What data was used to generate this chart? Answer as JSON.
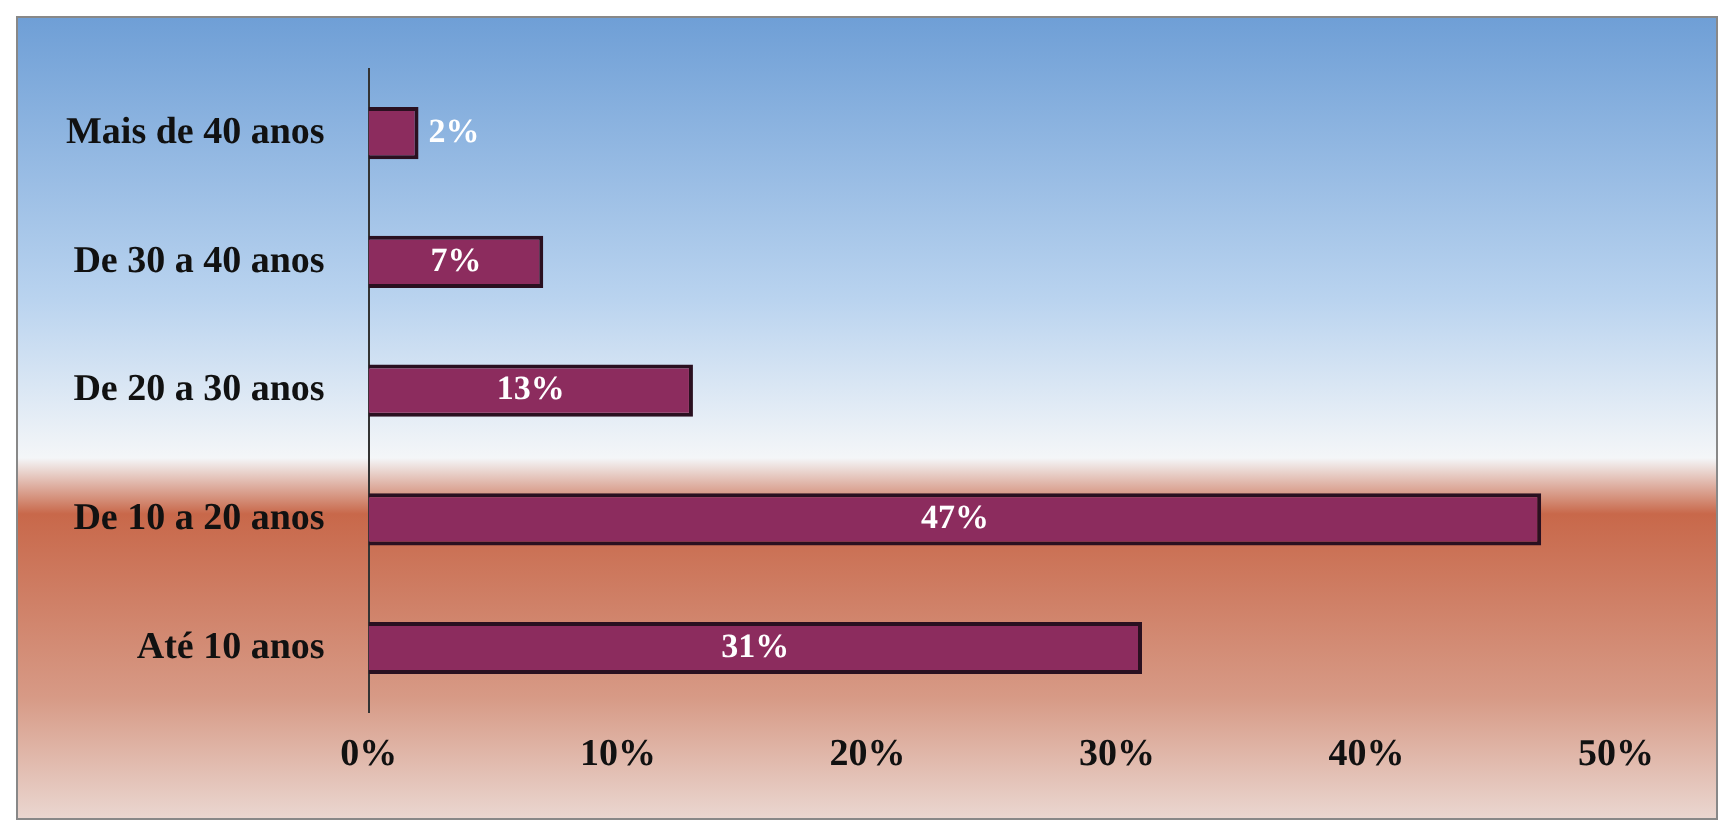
{
  "chart_data": {
    "type": "bar",
    "orientation": "horizontal",
    "categories": [
      "Mais de 40 anos",
      "De 30 a 40 anos",
      "De 20 a 30 anos",
      "De 10 a 20 anos",
      "Até 10 anos"
    ],
    "values": [
      2,
      7,
      13,
      47,
      31
    ],
    "value_labels": [
      "2%",
      "7%",
      "13%",
      "47%",
      "31%"
    ],
    "color": "#8c2c5e",
    "xlim": [
      0,
      50
    ],
    "xticks": [
      {
        "value": 0,
        "label": "0%"
      },
      {
        "value": 10,
        "label": "10%"
      },
      {
        "value": 20,
        "label": "20%"
      },
      {
        "value": 30,
        "label": "30%"
      },
      {
        "value": 40,
        "label": "40%"
      },
      {
        "value": 50,
        "label": "50%"
      }
    ],
    "grid": false,
    "legend": false
  }
}
